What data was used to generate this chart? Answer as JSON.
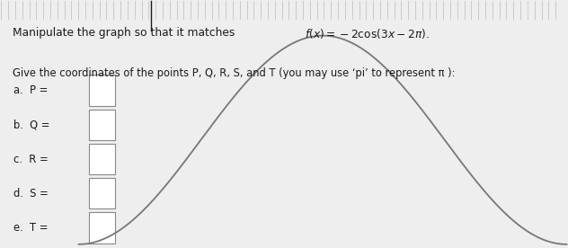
{
  "labels": [
    "a.  P =",
    "b.  Q =",
    "c.  R =",
    "d.  S =",
    "e.  T ="
  ],
  "background_color": "#eeeeee",
  "text_color": "#1a1a1a",
  "box_color": "#ffffff",
  "box_edge_color": "#888888",
  "curve_color": "#777777",
  "grid_top_color": "#bbbbbb"
}
